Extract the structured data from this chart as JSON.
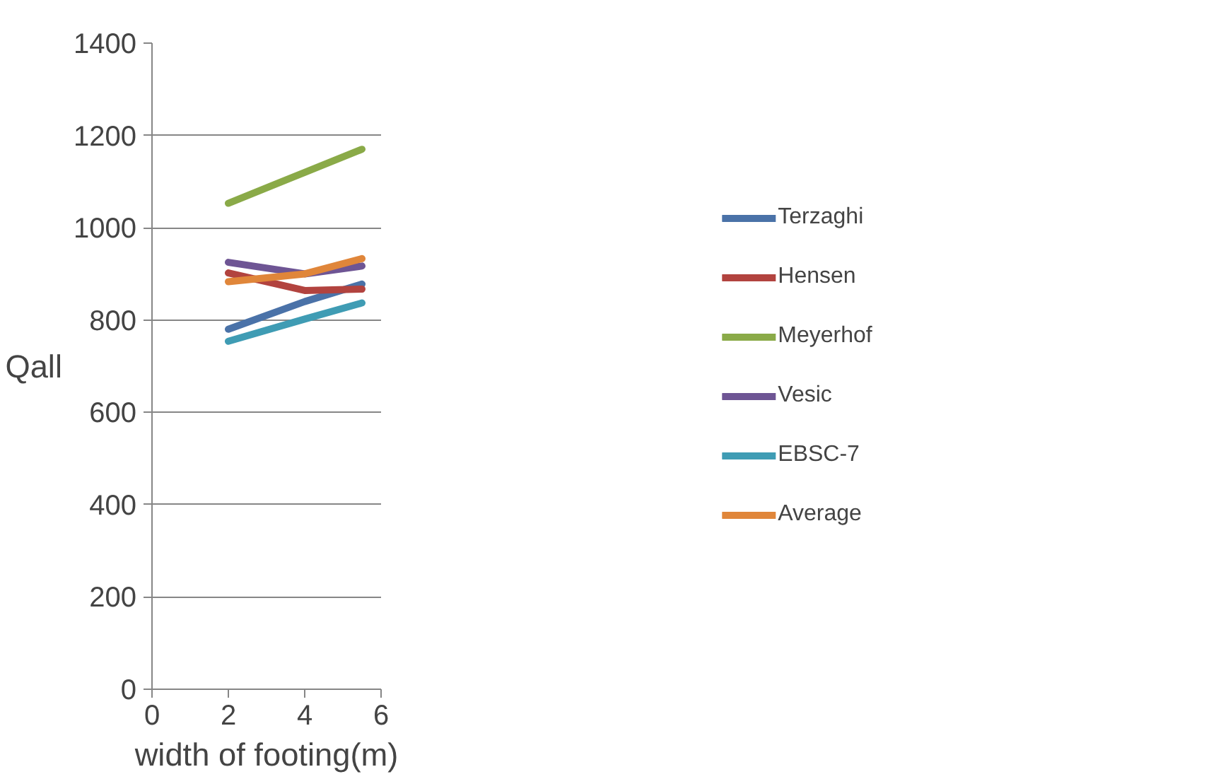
{
  "chart_data": {
    "type": "line",
    "xlabel": "width of footing(m)",
    "ylabel": "Qall",
    "xlim": [
      0,
      6
    ],
    "xticks": [
      0,
      2,
      4,
      6
    ],
    "ylim": [
      0,
      1400
    ],
    "yticks": [
      0,
      200,
      400,
      600,
      800,
      1000,
      1200,
      1400
    ],
    "grid": "y",
    "legend": "right",
    "marker": "none",
    "line_style": "solid",
    "x": [
      2,
      4,
      5.5
    ],
    "series": [
      {
        "name": "Terzaghi",
        "color": "#4a72a8",
        "values": [
          780,
          840,
          878
        ]
      },
      {
        "name": "Hensen",
        "color": "#b2433f",
        "values": [
          902,
          864,
          867
        ]
      },
      {
        "name": "Meyerhof",
        "color": "#8aaa48",
        "values": [
          1053,
          1120,
          1170
        ]
      },
      {
        "name": "Vesic",
        "color": "#6e5594",
        "values": [
          925,
          900,
          917
        ]
      },
      {
        "name": "EBSC-7",
        "color": "#3f9cb4",
        "values": [
          754,
          802,
          837
        ]
      },
      {
        "name": "Average",
        "color": "#e0863a",
        "values": [
          883,
          900,
          933
        ]
      }
    ]
  }
}
